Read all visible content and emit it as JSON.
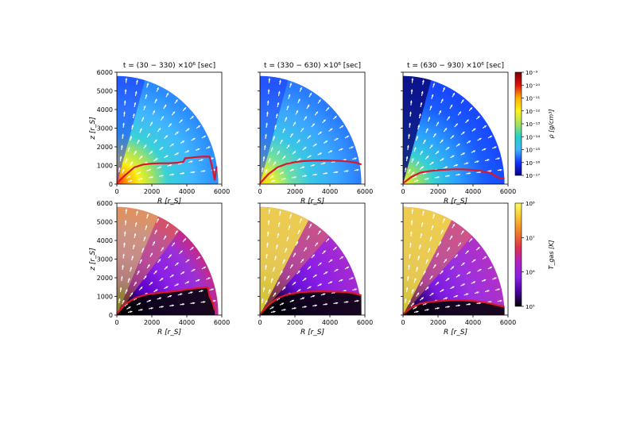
{
  "figure": {
    "panel_titles": [
      "t = (30 − 330) ×10⁶ [sec]",
      "t = (330 − 630) ×10⁶ [sec]",
      "t = (630 − 930) ×10⁶ [sec]"
    ],
    "xlabel": "R [r_S]",
    "ylabel": "z [r_S]",
    "xticks": [
      "0",
      "2000",
      "4000",
      "6000"
    ],
    "yticks": [
      "0",
      "1000",
      "2000",
      "3000",
      "4000",
      "5000",
      "6000"
    ]
  },
  "colorbars": {
    "density": {
      "label": "ρ [g/cm³]",
      "ticks": [
        "10⁻⁹",
        "10⁻¹⁰",
        "10⁻¹¹",
        "10⁻¹²",
        "10⁻¹³",
        "10⁻¹⁴",
        "10⁻¹⁵",
        "10⁻¹⁶",
        "10⁻¹⁷"
      ],
      "colors": [
        "#08008c",
        "#1133ff",
        "#3fb6ff",
        "#22d3c8",
        "#a6e35a",
        "#fff21a",
        "#ffb000",
        "#e0100e",
        "#7a0000"
      ]
    },
    "temperature": {
      "label": "T_gas [K]",
      "ticks": [
        "10⁸",
        "10⁷",
        "10⁶",
        "10⁵"
      ],
      "colors": [
        "#000000",
        "#4a00a0",
        "#8c1fe6",
        "#b020c8",
        "#e0304f",
        "#f37a23",
        "#f9c12c",
        "#fcff5c"
      ]
    }
  },
  "chart_data": [
    {
      "type": "heatmap",
      "quantity": "density",
      "title": "t = (30 − 330) ×10⁶ [sec]",
      "xlabel": "R [r_S]",
      "ylabel": "z [r_S]",
      "xlim": [
        0,
        6000
      ],
      "ylim": [
        0,
        6000
      ],
      "extent_radius": 5800,
      "boundary_curve": {
        "R": [
          0,
          500,
          1000,
          1500,
          2000,
          2500,
          3000,
          3500,
          3800,
          3900,
          4500,
          5000,
          5300,
          5400,
          5500,
          5600,
          5700
        ],
        "z": [
          50,
          500,
          900,
          1050,
          1100,
          1120,
          1120,
          1150,
          1200,
          1380,
          1450,
          1480,
          1470,
          1100,
          700,
          200,
          950
        ]
      }
    },
    {
      "type": "heatmap",
      "quantity": "density",
      "title": "t = (330 − 630) ×10⁶ [sec]",
      "xlabel": "R [r_S]",
      "ylabel": "",
      "xlim": [
        0,
        6000
      ],
      "ylim": [
        0,
        6000
      ],
      "extent_radius": 5800,
      "boundary_curve": {
        "R": [
          0,
          500,
          1000,
          1500,
          2000,
          2500,
          3000,
          3500,
          4000,
          4500,
          5000,
          5500,
          5800
        ],
        "z": [
          50,
          550,
          900,
          1080,
          1180,
          1240,
          1260,
          1270,
          1260,
          1250,
          1220,
          1150,
          1050
        ]
      }
    },
    {
      "type": "heatmap",
      "quantity": "density",
      "title": "t = (630 − 930) ×10⁶ [sec]",
      "xlabel": "R [r_S]",
      "ylabel": "",
      "xlim": [
        0,
        6000
      ],
      "ylim": [
        0,
        6000
      ],
      "extent_radius": 5800,
      "boundary_curve": {
        "R": [
          0,
          500,
          1000,
          1500,
          2000,
          2500,
          3000,
          3500,
          4000,
          4500,
          5000,
          5300,
          5600,
          5800
        ],
        "z": [
          50,
          400,
          620,
          700,
          750,
          780,
          800,
          790,
          760,
          700,
          600,
          420,
          300,
          300
        ]
      }
    },
    {
      "type": "heatmap",
      "quantity": "temperature",
      "title": "",
      "xlabel": "R [r_S]",
      "ylabel": "z [r_S]",
      "xlim": [
        0,
        6000
      ],
      "ylim": [
        0,
        6000
      ],
      "extent_radius": 5800,
      "boundary_curve": {
        "R": [
          0,
          500,
          1000,
          1500,
          2000,
          2500,
          3000,
          3500,
          4000,
          4500,
          5000,
          5200,
          5300,
          5500,
          5600
        ],
        "z": [
          80,
          600,
          900,
          1050,
          1150,
          1200,
          1250,
          1300,
          1380,
          1430,
          1480,
          1480,
          1000,
          600,
          250
        ]
      }
    },
    {
      "type": "heatmap",
      "quantity": "temperature",
      "title": "",
      "xlabel": "R [r_S]",
      "ylabel": "",
      "xlim": [
        0,
        6000
      ],
      "ylim": [
        0,
        6000
      ],
      "extent_radius": 5800,
      "boundary_curve": {
        "R": [
          0,
          500,
          1000,
          1500,
          2000,
          2500,
          3000,
          3500,
          4000,
          4500,
          5000,
          5500,
          5800
        ],
        "z": [
          50,
          550,
          900,
          1080,
          1180,
          1240,
          1260,
          1270,
          1260,
          1250,
          1220,
          1150,
          1050
        ]
      }
    },
    {
      "type": "heatmap",
      "quantity": "temperature",
      "title": "",
      "xlabel": "R [r_S]",
      "ylabel": "",
      "xlim": [
        0,
        6000
      ],
      "ylim": [
        0,
        6000
      ],
      "extent_radius": 5800,
      "boundary_curve": {
        "R": [
          0,
          500,
          1000,
          1500,
          2000,
          2500,
          3000,
          3500,
          4000,
          4500,
          5000,
          5500,
          5800
        ],
        "z": [
          50,
          420,
          620,
          700,
          750,
          780,
          800,
          790,
          760,
          700,
          620,
          500,
          450
        ]
      }
    }
  ]
}
